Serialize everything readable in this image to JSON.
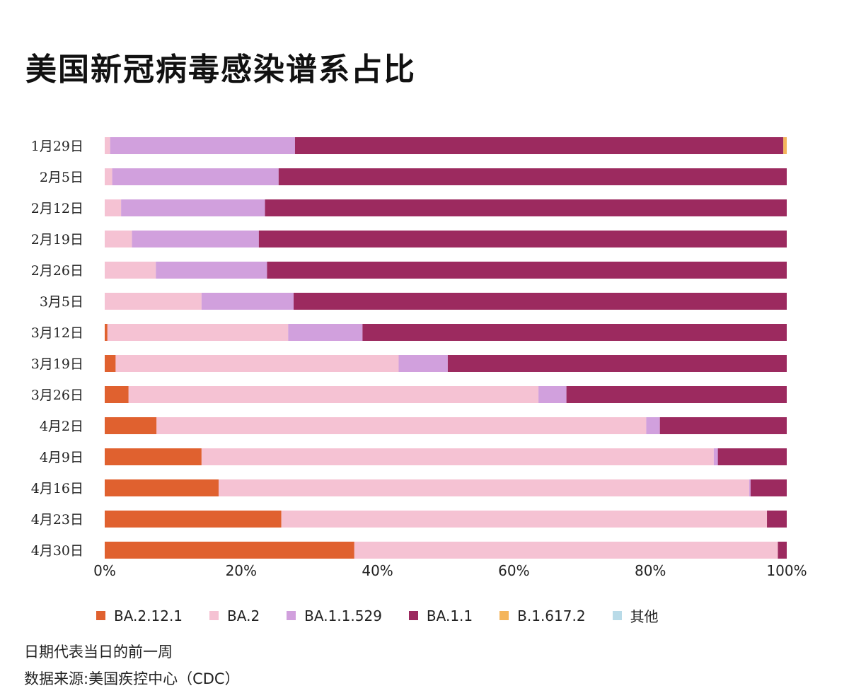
{
  "title": "美国新冠病毒感染谱系占比",
  "note": "日期代表当日的前一周",
  "source": "数据来源:美国疾控中心（CDC）",
  "chart_data": {
    "type": "bar",
    "orientation": "horizontal",
    "stacked": true,
    "categories": [
      "1月29日",
      "2月5日",
      "2月12日",
      "2月19日",
      "2月26日",
      "3月5日",
      "3月12日",
      "3月19日",
      "3月26日",
      "4月2日",
      "4月9日",
      "4月16日",
      "4月23日",
      "4月30日"
    ],
    "series": [
      {
        "name": "BA.2.12.1",
        "color": "#e0612f",
        "values": [
          0,
          0,
          0,
          0,
          0,
          0,
          0.4,
          1.6,
          3.5,
          7.6,
          14.2,
          16.7,
          25.9,
          36.6
        ]
      },
      {
        "name": "BA.2",
        "color": "#f5c2d3",
        "values": [
          0.8,
          1.1,
          2.4,
          4.0,
          7.5,
          14.2,
          26.5,
          41.5,
          60.1,
          71.8,
          75.1,
          77.8,
          71.2,
          62.1
        ]
      },
      {
        "name": "BA.1.1.529",
        "color": "#d1a0dd",
        "values": [
          27.1,
          24.4,
          21.1,
          18.6,
          16.3,
          13.5,
          10.9,
          7.2,
          4.1,
          2.0,
          0.6,
          0.2,
          0,
          0
        ]
      },
      {
        "name": "BA.1.1",
        "color": "#9c2a5f",
        "values": [
          71.6,
          74.5,
          76.5,
          77.4,
          76.2,
          72.3,
          62.2,
          49.7,
          32.3,
          18.6,
          10.1,
          5.3,
          2.9,
          1.3
        ]
      },
      {
        "name": "B.1.617.2",
        "color": "#f4b55b",
        "values": [
          0.5,
          0,
          0,
          0,
          0,
          0,
          0,
          0,
          0,
          0,
          0,
          0,
          0,
          0
        ]
      },
      {
        "name": "其他",
        "color": "#b9dbe8",
        "values": [
          0,
          0,
          0,
          0,
          0,
          0,
          0,
          0,
          0,
          0,
          0,
          0,
          0,
          0
        ]
      }
    ],
    "xlim": [
      0,
      100
    ],
    "xticks": [
      "0%",
      "20%",
      "40%",
      "60%",
      "80%",
      "100%"
    ],
    "xlabel": "",
    "ylabel": "",
    "grid": false,
    "legend": "bottom"
  }
}
